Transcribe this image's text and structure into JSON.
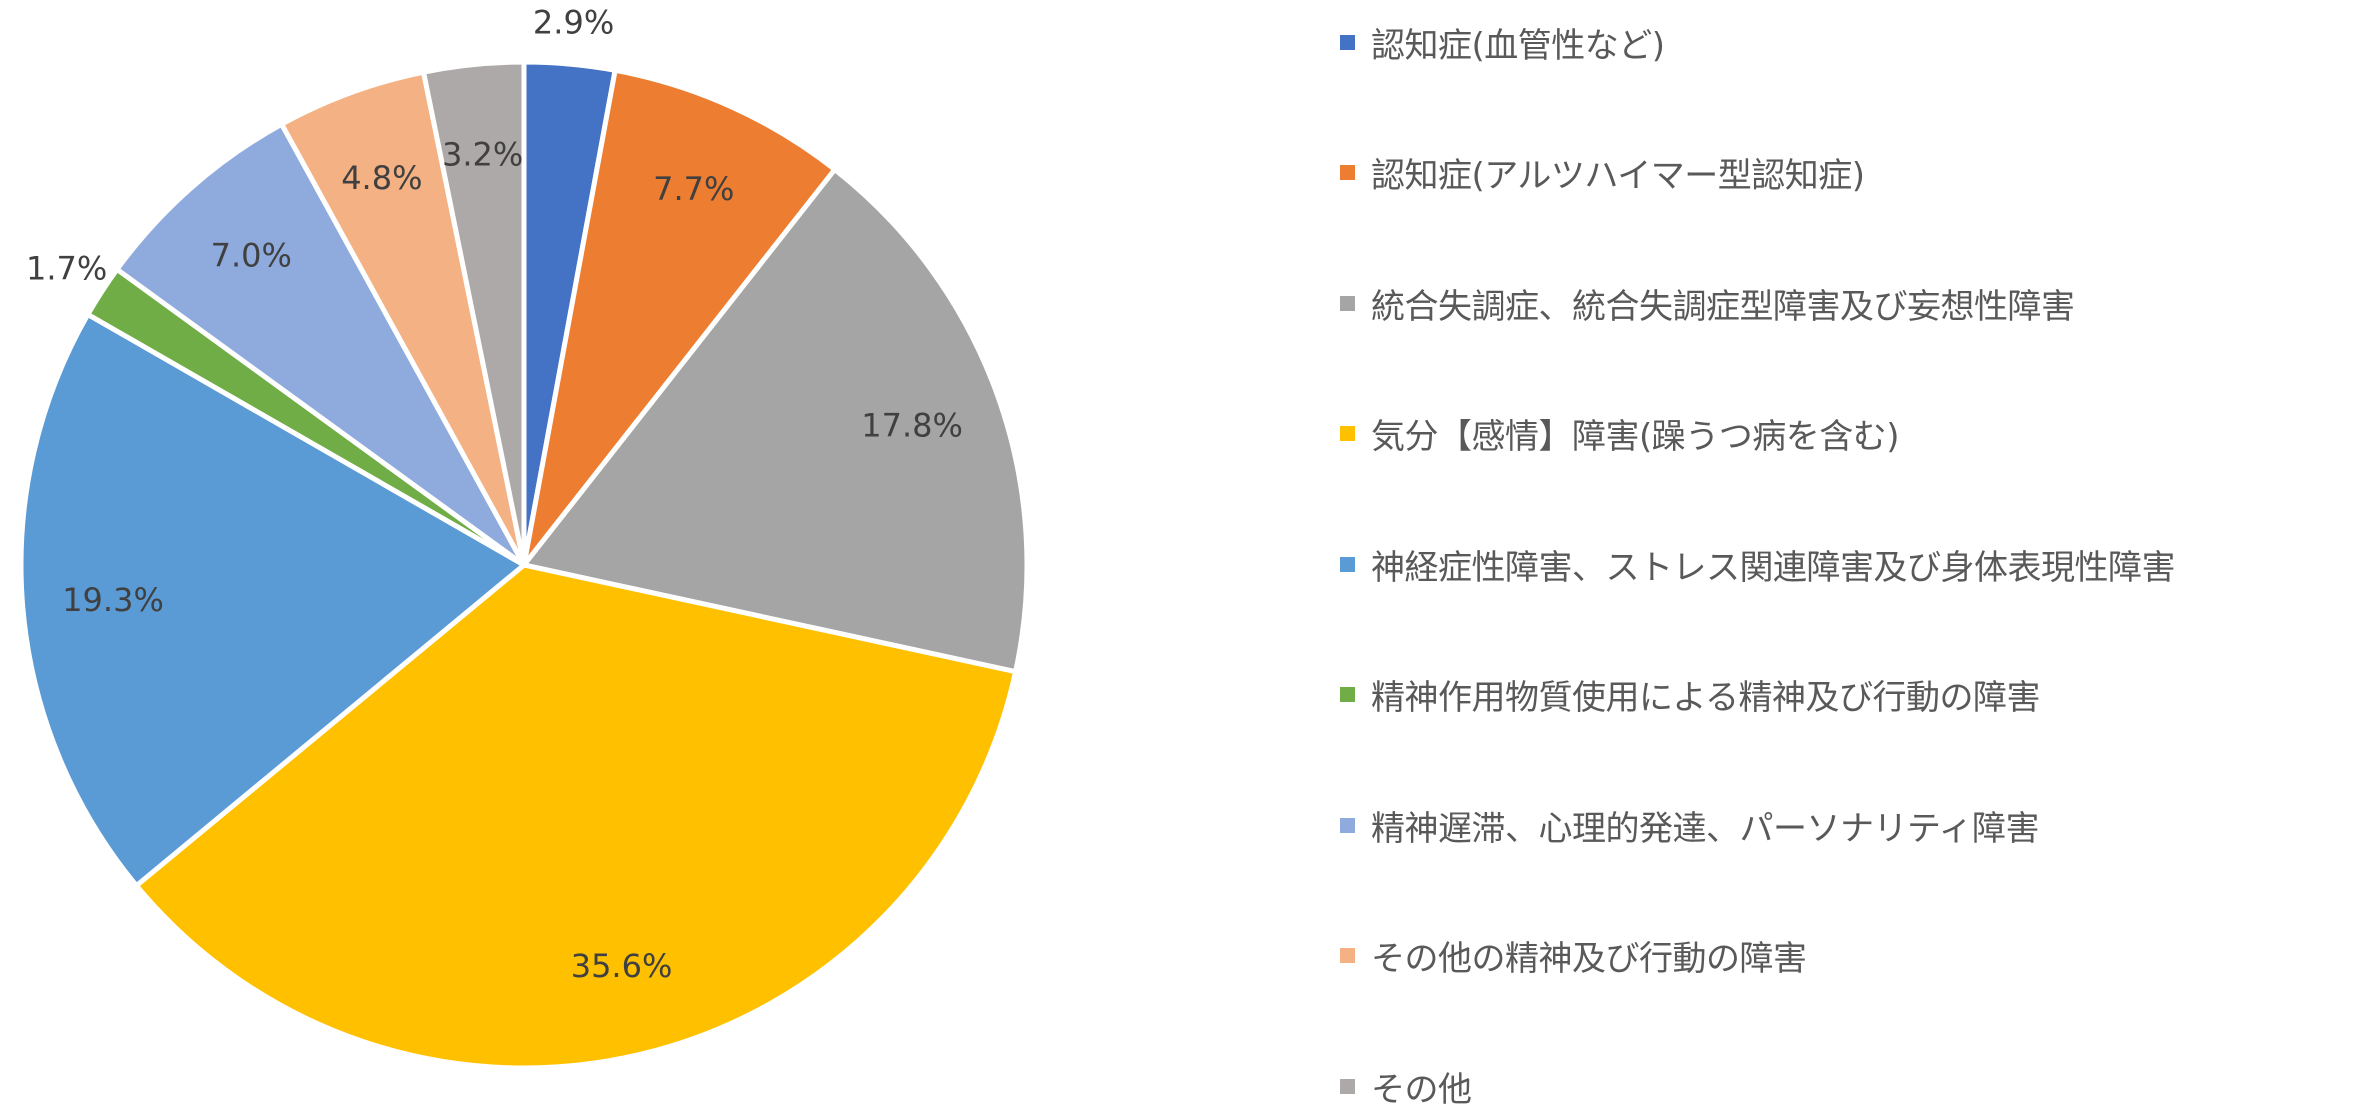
{
  "chart_data": {
    "type": "pie",
    "title": "",
    "start_angle_deg": 0,
    "direction": "clockwise",
    "legend_position": "right",
    "slices": [
      {
        "label": "認知症(血管性など)",
        "value": 2.9,
        "display": "2.9%",
        "color": "#4472C4",
        "label_placement": "outside"
      },
      {
        "label": "認知症(アルツハイマー型認知症)",
        "value": 7.7,
        "display": "7.7%",
        "color": "#ED7D31",
        "label_placement": "inside"
      },
      {
        "label": "統合失調症、統合失調症型障害及び妄想性障害",
        "value": 17.8,
        "display": "17.8%",
        "color": "#A5A5A5",
        "label_placement": "inside"
      },
      {
        "label": "気分【感情】障害(躁うつ病を含む)",
        "value": 35.6,
        "display": "35.6%",
        "color": "#FFC000",
        "label_placement": "inside"
      },
      {
        "label": "神経症性障害、ストレス関連障害及び身体表現性障害",
        "value": 19.3,
        "display": "19.3%",
        "color": "#5B9BD5",
        "label_placement": "inside"
      },
      {
        "label": "精神作用物質使用による精神及び行動の障害",
        "value": 1.7,
        "display": "1.7%",
        "color": "#70AD47",
        "label_placement": "outside"
      },
      {
        "label": "精神遅滞、心理的発達、パーソナリティ障害",
        "value": 7.0,
        "display": "7.0%",
        "color": "#8FAADC",
        "label_placement": "inside"
      },
      {
        "label": "その他の精神及び行動の障害",
        "value": 4.8,
        "display": "4.8%",
        "color": "#F4B183",
        "label_placement": "inside"
      },
      {
        "label": "その他",
        "value": 3.2,
        "display": "3.2%",
        "color": "#ADA9A9",
        "label_placement": "inside"
      }
    ]
  }
}
